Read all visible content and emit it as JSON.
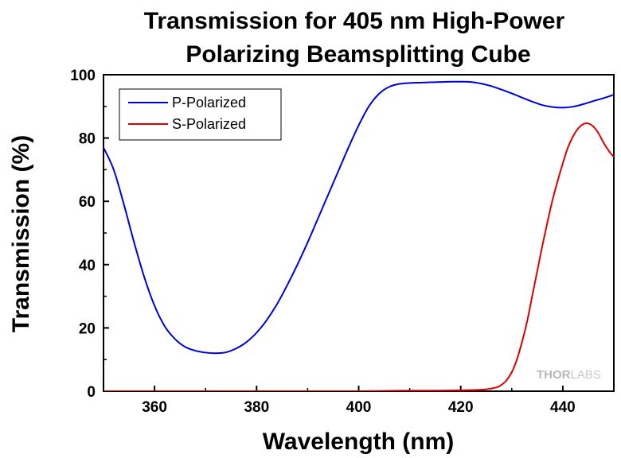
{
  "chart_data": {
    "type": "line",
    "title_lines": [
      "Transmission for 405 nm High-Power",
      "Polarizing Beamsplitting Cube"
    ],
    "xlabel": "Wavelength (nm)",
    "ylabel": "Transmission (%)",
    "xlim": [
      350,
      450
    ],
    "ylim": [
      0,
      100
    ],
    "xticks": [
      360,
      380,
      400,
      420,
      440
    ],
    "yticks": [
      0,
      20,
      40,
      60,
      80,
      100
    ],
    "legend_position": "top-left",
    "grid": false,
    "series": [
      {
        "name": "P-Polarized",
        "color": "#0000dd",
        "x": [
          350,
          352,
          354,
          356,
          358,
          360,
          362,
          364,
          366,
          368,
          370,
          372,
          374,
          376,
          378,
          380,
          382,
          384,
          386,
          388,
          390,
          392,
          394,
          396,
          398,
          400,
          402,
          404,
          406,
          408,
          410,
          412,
          414,
          416,
          418,
          420,
          422,
          424,
          426,
          428,
          430,
          432,
          434,
          436,
          438,
          440,
          442,
          444,
          446,
          448,
          450
        ],
        "y": [
          77,
          70,
          59,
          47,
          36,
          27,
          20.5,
          16.5,
          14,
          12.8,
          12.2,
          12,
          12.3,
          13.5,
          15.5,
          18.5,
          22.5,
          27.5,
          33.5,
          40,
          47,
          54.5,
          62,
          69.5,
          77,
          84,
          90,
          94,
          96.2,
          97.1,
          97.4,
          97.5,
          97.6,
          97.7,
          97.8,
          97.8,
          97.7,
          97.2,
          96.4,
          95.3,
          94.1,
          92.8,
          91.5,
          90.4,
          89.8,
          89.6,
          89.9,
          90.7,
          91.7,
          92.6,
          93.7
        ]
      },
      {
        "name": "S-Polarized",
        "color": "#dd0000",
        "x": [
          350,
          360,
          370,
          380,
          390,
          400,
          405,
          410,
          415,
          420,
          423,
          425,
          427,
          428,
          429,
          430,
          431,
          432,
          433,
          434,
          435,
          436,
          437,
          438,
          439,
          440,
          441,
          442,
          443,
          444,
          445,
          446,
          447,
          448,
          449,
          450
        ],
        "y": [
          0,
          0,
          0,
          0,
          0,
          0,
          0.1,
          0.2,
          0.2,
          0.3,
          0.4,
          0.6,
          1.2,
          2,
          3.5,
          6,
          10,
          15.5,
          22,
          30,
          38,
          46,
          53.5,
          60.5,
          66.5,
          72,
          77,
          80.5,
          83,
          84.4,
          84.6,
          83.6,
          81.5,
          78.5,
          76,
          74
        ]
      }
    ]
  },
  "watermark": {
    "brand_bold": "THOR",
    "brand_light": "LABS"
  }
}
